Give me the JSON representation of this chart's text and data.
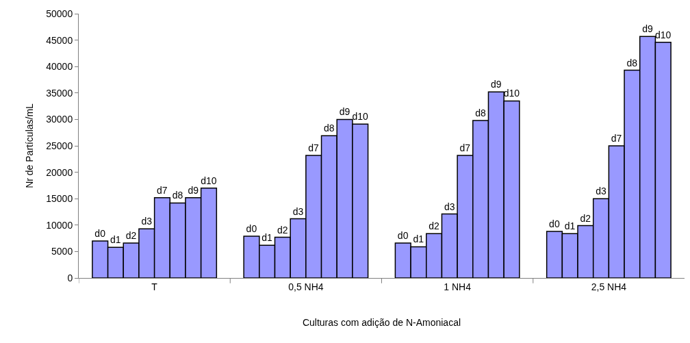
{
  "chart_data": {
    "type": "bar",
    "xlabel": "Culturas com adição de N-Amoniacal",
    "ylabel": "Nr de Partículas/mL",
    "categories": [
      "T",
      "0,5 NH4",
      "1 NH4",
      "2,5 NH4"
    ],
    "series": [
      {
        "name": "d0",
        "color": "#9999ff",
        "values": [
          7000,
          7900,
          6600,
          8800
        ]
      },
      {
        "name": "d1",
        "color": "#9999ff",
        "values": [
          5800,
          6200,
          5900,
          8400
        ]
      },
      {
        "name": "d2",
        "color": "#9999ff",
        "values": [
          6600,
          7700,
          8400,
          9900
        ]
      },
      {
        "name": "d3",
        "color": "#9999ff",
        "values": [
          9300,
          11200,
          12100,
          15000
        ]
      },
      {
        "name": "d7",
        "color": "#9999ff",
        "values": [
          15200,
          23200,
          23200,
          25000
        ]
      },
      {
        "name": "d8",
        "color": "#9999ff",
        "values": [
          14200,
          26900,
          29800,
          39300
        ]
      },
      {
        "name": "d9",
        "color": "#9999ff",
        "values": [
          15200,
          30000,
          35200,
          45700
        ]
      },
      {
        "name": "d10",
        "color": "#9999ff",
        "values": [
          17000,
          29100,
          33500,
          44600
        ]
      }
    ],
    "ylim": [
      0,
      50000
    ],
    "yticks": [
      0,
      5000,
      10000,
      15000,
      20000,
      25000,
      30000,
      35000,
      40000,
      45000,
      50000
    ],
    "legend": false
  }
}
